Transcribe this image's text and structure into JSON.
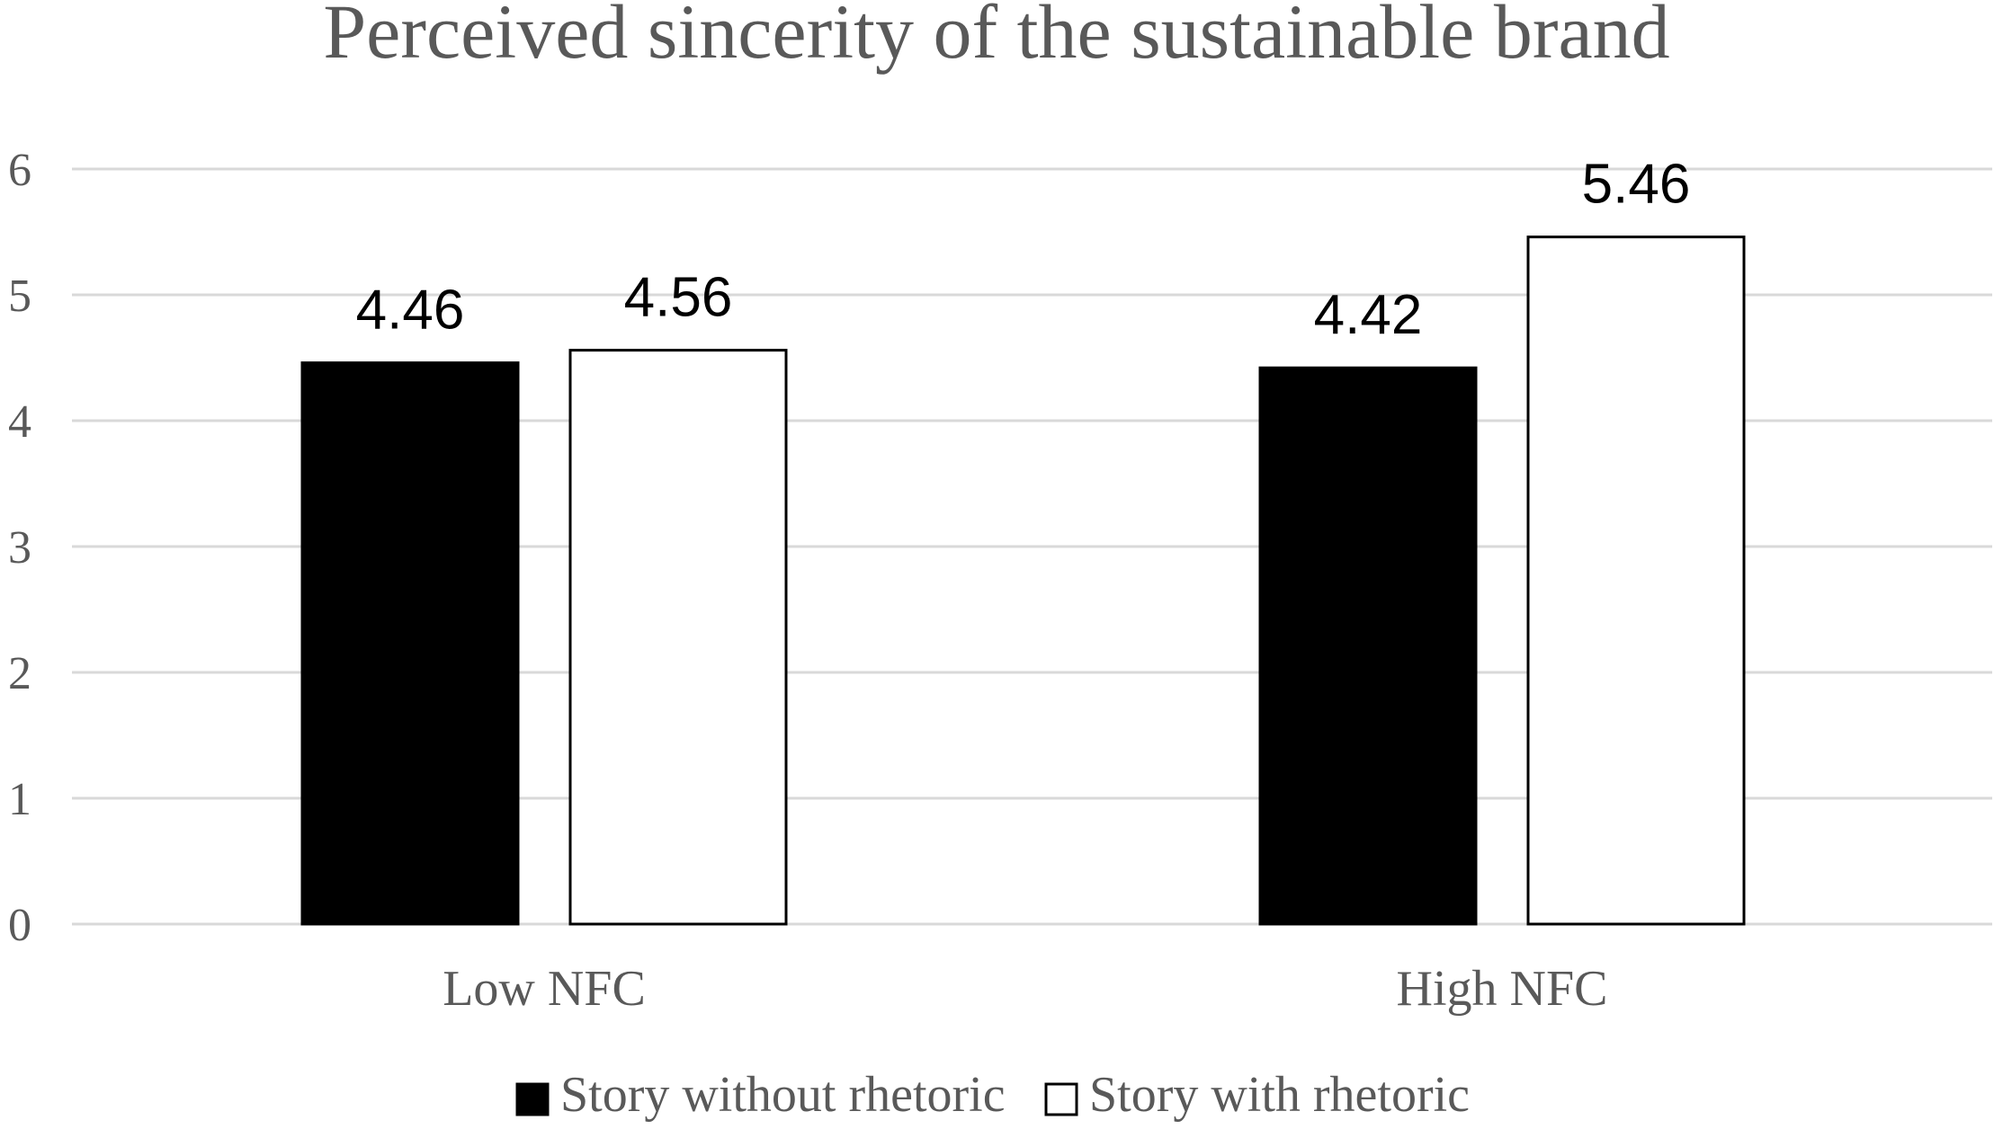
{
  "chart_data": {
    "type": "bar",
    "title": "Perceived sincerity of the sustainable brand",
    "categories": [
      "Low NFC",
      "High NFC"
    ],
    "series": [
      {
        "name": "Story without rhetoric",
        "color": "#000000",
        "values": [
          4.46,
          4.42
        ],
        "data_labels": [
          "4.46",
          "4.42"
        ]
      },
      {
        "name": "Story with rhetoric",
        "color": "#ffffff",
        "values": [
          4.56,
          5.46
        ],
        "data_labels": [
          "4.56",
          "5.46"
        ]
      }
    ],
    "ylim": [
      0,
      6
    ],
    "yticks": [
      "0",
      "1",
      "2",
      "3",
      "4",
      "5",
      "6"
    ],
    "grid": true,
    "legend_position": "bottom"
  }
}
